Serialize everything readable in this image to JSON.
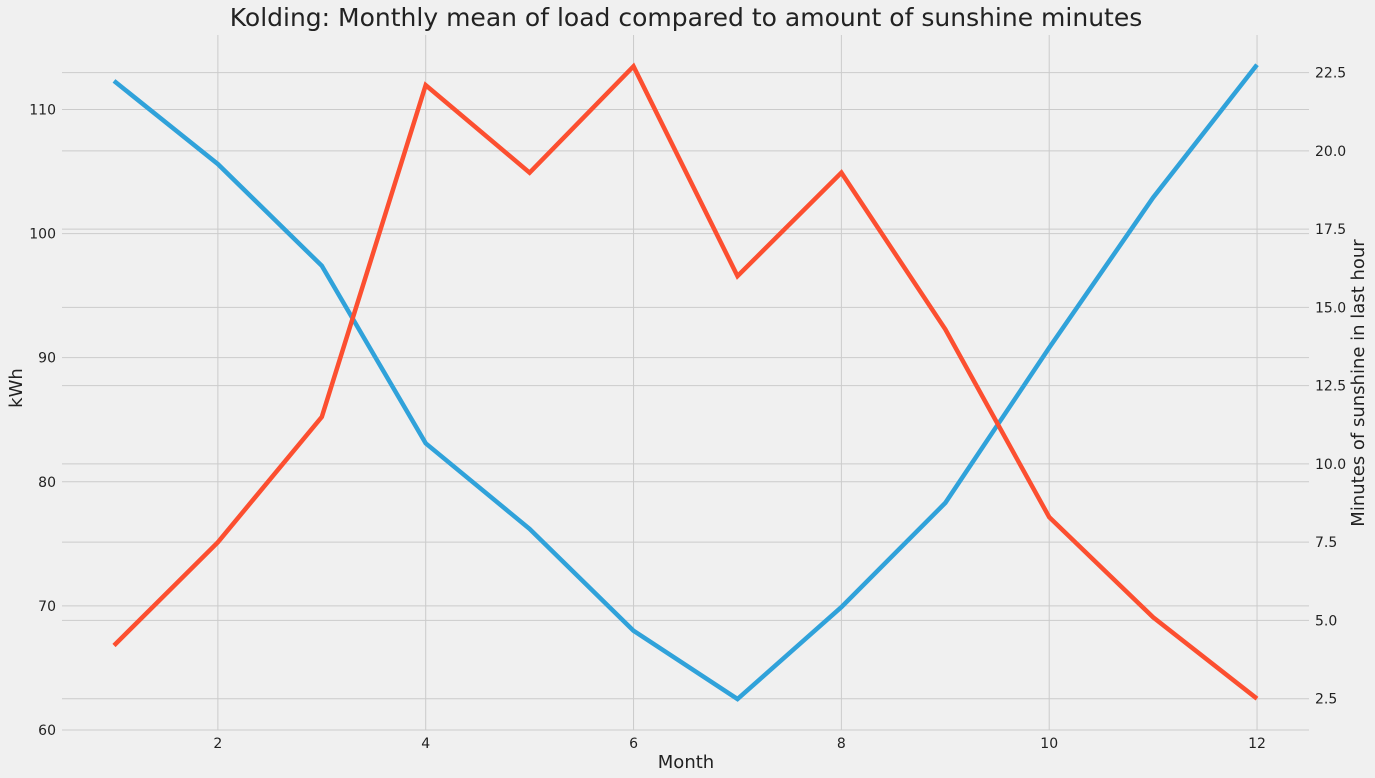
{
  "chart_data": {
    "type": "line",
    "title": "Kolding: Monthly mean of load compared to amount of sunshine minutes",
    "xlabel": "Month",
    "ylabel_left": "kWh",
    "ylabel_right": "Minutes of sunshine in last hour",
    "x": [
      1,
      2,
      3,
      4,
      5,
      6,
      7,
      8,
      9,
      10,
      11,
      12
    ],
    "xlim": [
      0.5,
      12.5
    ],
    "xticks": [
      2,
      4,
      6,
      8,
      10,
      12
    ],
    "ylim_left": [
      60,
      116
    ],
    "yticks_left": [
      60,
      70,
      80,
      90,
      100,
      110
    ],
    "ylim_right": [
      1.5,
      23.7
    ],
    "yticks_right": [
      2.5,
      5.0,
      7.5,
      10.0,
      12.5,
      15.0,
      17.5,
      20.0,
      22.5
    ],
    "grid": true,
    "legend": "none",
    "series": [
      {
        "axis": "left",
        "color": "#30a2da",
        "values": [
          112.3,
          105.6,
          97.4,
          83.1,
          76.2,
          68.0,
          62.5,
          69.9,
          78.3,
          90.8,
          102.9,
          113.6
        ]
      },
      {
        "axis": "right",
        "color": "#fc4f30",
        "values": [
          4.2,
          7.5,
          11.5,
          22.1,
          19.3,
          22.7,
          16.0,
          19.3,
          14.3,
          8.3,
          5.1,
          2.5
        ]
      }
    ]
  }
}
